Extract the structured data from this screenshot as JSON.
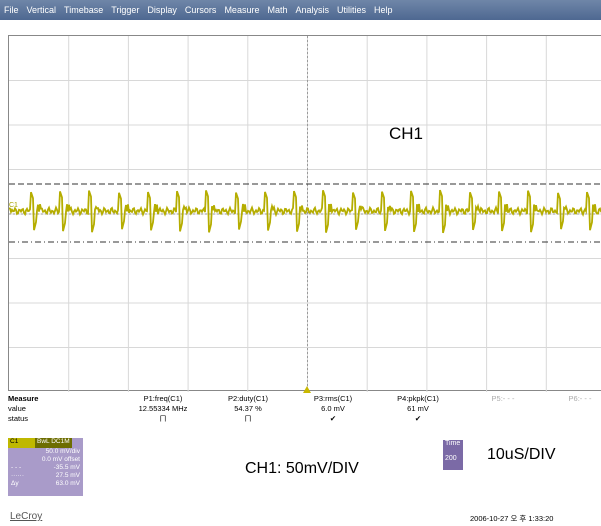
{
  "menu": [
    "File",
    "Vertical",
    "Timebase",
    "Trigger",
    "Display",
    "Cursors",
    "Measure",
    "Math",
    "Analysis",
    "Utilities",
    "Help"
  ],
  "screen": {
    "channel_label": "CH1",
    "trace_marker": "C1"
  },
  "measure": {
    "title": "Measure",
    "row_labels": [
      "value",
      "status"
    ],
    "columns": [
      {
        "header": "P1:freq(C1)",
        "value": "12.55334 MHz",
        "status": "⨅"
      },
      {
        "header": "P2:duty(C1)",
        "value": "54.37 %",
        "status": "⨅"
      },
      {
        "header": "P3:rms(C1)",
        "value": "6.0 mV",
        "status": "✔"
      },
      {
        "header": "P4:pkpk(C1)",
        "value": "61 mV",
        "status": "✔"
      },
      {
        "header": "P5:- - -",
        "value": "",
        "status": ""
      },
      {
        "header": "P6:- - -",
        "value": "",
        "status": ""
      }
    ]
  },
  "channel": {
    "name": "C1",
    "mode": "BwL DC1M",
    "rows": [
      {
        "label": "",
        "value": "50.0 mV/div"
      },
      {
        "label": "",
        "value": "0.0 mV offset"
      },
      {
        "label": "- - -",
        "value": "-35.5 mV"
      },
      {
        "label": "······",
        "value": "27.5 mV"
      },
      {
        "label": "Δy",
        "value": "63.0 mV"
      }
    ]
  },
  "notes": {
    "vdiv": "CH1: 50mV/DIV",
    "tdiv": "10uS/DIV"
  },
  "timebase": {
    "title": "Time",
    "value": "200"
  },
  "brand": "LeCroy",
  "timestamp": "2006-10-27 오 후 1:33:20",
  "colors": {
    "trace": "#b5ad00",
    "menubar": "#5a7299",
    "channel_box": "#a99bc9"
  }
}
